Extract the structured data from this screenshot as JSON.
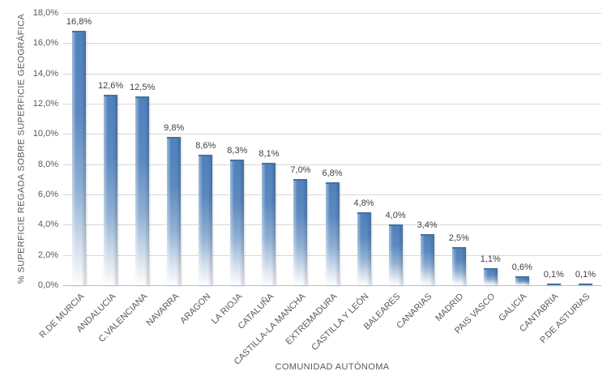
{
  "chart_data": {
    "type": "bar",
    "title": "",
    "xlabel": "COMUNIDAD AUTÓNOMA",
    "ylabel": "% SUPERFICIE REGADA SOBRE SUPERFICIE GEOGRÁFICA",
    "ylim": [
      0,
      18
    ],
    "ytick_step": 2,
    "grid": true,
    "legend_position": "none",
    "bar_color_top": "#4f81bd",
    "bar_color_bottom": "#ffffff",
    "gridline_color": "#d9d9d9",
    "categories": [
      "R.DE MURCIA",
      "ANDALUCIA",
      "C.VALENCIANA",
      "NAVARRA",
      "ARAGON",
      "LA RIOJA",
      "CATALUÑA",
      "CASTILLA-LA MANCHA",
      "EXTREMADURA",
      "CASTILLA Y LEÓN",
      "BALEARES",
      "CANARIAS",
      "MADRID",
      "PAIS VASCO",
      "GALICIA",
      "CANTABRIA",
      "P.DE ASTURIAS"
    ],
    "values": [
      16.8,
      12.6,
      12.5,
      9.8,
      8.6,
      8.3,
      8.1,
      7.0,
      6.8,
      4.8,
      4.0,
      3.4,
      2.5,
      1.1,
      0.6,
      0.1,
      0.1
    ],
    "value_labels": [
      "16,8%",
      "12,6%",
      "12,5%",
      "9,8%",
      "8,6%",
      "8,3%",
      "8,1%",
      "7,0%",
      "6,8%",
      "4,8%",
      "4,0%",
      "3,4%",
      "2,5%",
      "1,1%",
      "0,6%",
      "0,1%",
      "0,1%"
    ],
    "yticks": [
      {
        "value": 0,
        "label": "0,0%"
      },
      {
        "value": 2,
        "label": "2,0%"
      },
      {
        "value": 4,
        "label": "4,0%"
      },
      {
        "value": 6,
        "label": "6,0%"
      },
      {
        "value": 8,
        "label": "8,0%"
      },
      {
        "value": 10,
        "label": "10,0%"
      },
      {
        "value": 12,
        "label": "12,0%"
      },
      {
        "value": 14,
        "label": "14,0%"
      },
      {
        "value": 16,
        "label": "16,0%"
      },
      {
        "value": 18,
        "label": "18,0%"
      }
    ]
  }
}
